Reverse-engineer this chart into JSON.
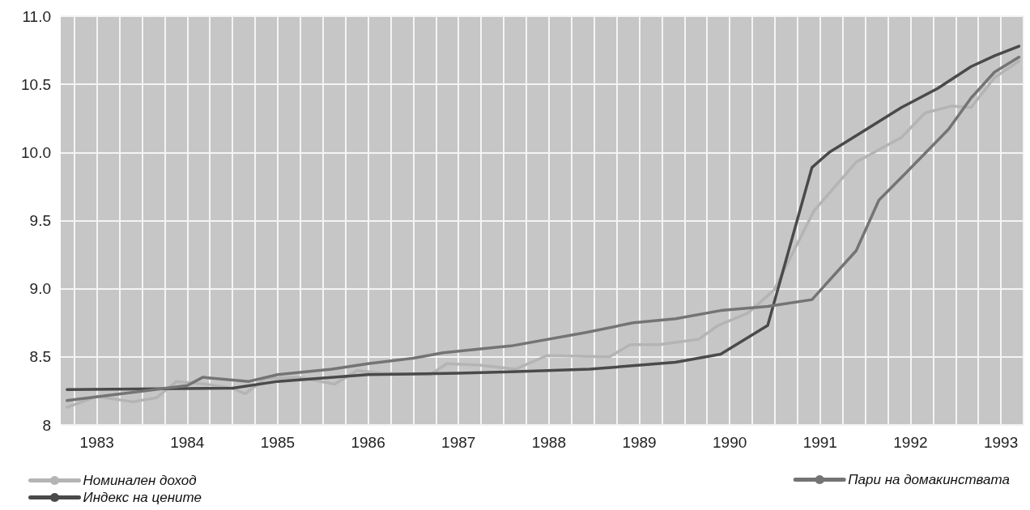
{
  "chart_data": {
    "type": "line",
    "xlim": [
      1982.6,
      1993.25
    ],
    "xticks": [
      1983,
      1984,
      1985,
      1986,
      1987,
      1988,
      1989,
      1990,
      1991,
      1992,
      1993
    ],
    "ylim": [
      8,
      11
    ],
    "yticks": [
      {
        "value": 8,
        "label": "8"
      },
      {
        "value": 8.5,
        "label": "8.5"
      },
      {
        "value": 9,
        "label": "9.0"
      },
      {
        "value": 9.5,
        "label": "9.5"
      },
      {
        "value": 10,
        "label": "10.0"
      },
      {
        "value": 10.5,
        "label": "10.5"
      },
      {
        "value": 11,
        "label": "11.0"
      }
    ],
    "grid": true,
    "legend": "bottom",
    "marker": "none",
    "line_style": "solid",
    "series": [
      {
        "name": "Номинален доход",
        "color": "#b4b4b4",
        "x": [
          1982.67,
          1983.0,
          1983.4,
          1983.66,
          1983.88,
          1984.2,
          1984.5,
          1984.64,
          1984.86,
          1985.23,
          1985.63,
          1985.88,
          1986.14,
          1986.69,
          1986.87,
          1987.23,
          1987.63,
          1987.98,
          1988.67,
          1988.9,
          1989.22,
          1989.66,
          1989.87,
          1990.2,
          1990.49,
          1990.93,
          1991.4,
          1991.9,
          1992.16,
          1992.45,
          1992.67,
          1992.93,
          1993.2
        ],
        "values": [
          8.13,
          8.21,
          8.17,
          8.2,
          8.32,
          8.3,
          8.27,
          8.23,
          8.34,
          8.35,
          8.3,
          8.4,
          8.38,
          8.37,
          8.45,
          8.44,
          8.41,
          8.51,
          8.5,
          8.59,
          8.59,
          8.63,
          8.73,
          8.82,
          8.99,
          9.57,
          9.93,
          10.11,
          10.29,
          10.34,
          10.33,
          10.55,
          10.67
        ]
      },
      {
        "name": "Индекс на цените",
        "color": "#4a4a4a",
        "x": [
          1982.67,
          1984.5,
          1985.0,
          1986.0,
          1987.0,
          1987.58,
          1988.45,
          1989.4,
          1989.9,
          1990.42,
          1990.91,
          1991.1,
          1991.44,
          1991.9,
          1992.3,
          1992.67,
          1992.93,
          1993.2
        ],
        "values": [
          8.26,
          8.27,
          8.32,
          8.37,
          8.38,
          8.39,
          8.41,
          8.46,
          8.52,
          8.73,
          9.89,
          10.0,
          10.14,
          10.33,
          10.47,
          10.63,
          10.71,
          10.78
        ]
      },
      {
        "name": "Пари на домакинствата",
        "color": "#747474",
        "x": [
          1982.67,
          1984.0,
          1984.17,
          1984.68,
          1985.0,
          1985.6,
          1986.0,
          1986.5,
          1986.83,
          1987.42,
          1987.58,
          1988.42,
          1988.93,
          1989.4,
          1989.9,
          1990.42,
          1990.91,
          1991.4,
          1991.65,
          1991.95,
          1992.42,
          1992.67,
          1992.93,
          1993.2
        ],
        "values": [
          8.18,
          8.29,
          8.35,
          8.32,
          8.37,
          8.41,
          8.45,
          8.49,
          8.53,
          8.57,
          8.58,
          8.68,
          8.75,
          8.78,
          8.84,
          8.87,
          8.92,
          9.28,
          9.65,
          9.85,
          10.17,
          10.4,
          10.59,
          10.7
        ]
      }
    ]
  }
}
